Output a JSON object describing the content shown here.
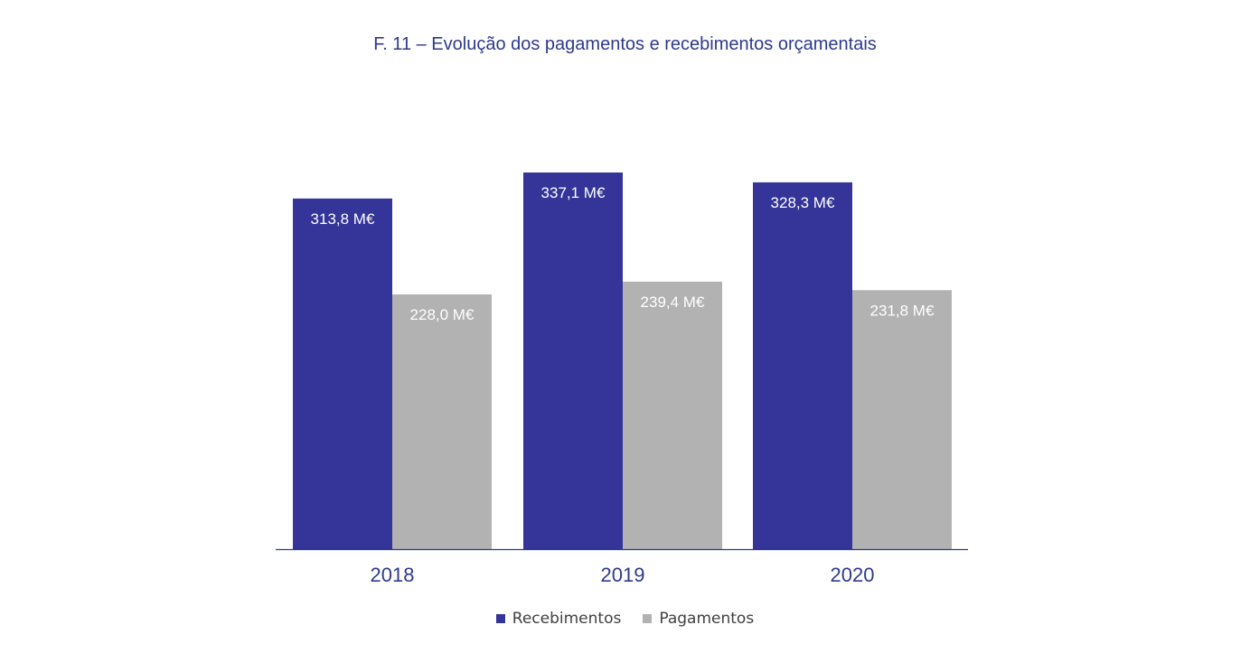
{
  "colors": {
    "title": "#2e3a8c",
    "recebimentos": "#343499",
    "pagamentos": "#b2b2b2",
    "axis": "#2e3a8c",
    "bar_label": "#ffffff"
  },
  "chart_data": {
    "type": "bar",
    "title": "F. 11 – Evolução dos pagamentos e recebimentos orçamentais",
    "categories": [
      "2018",
      "2019",
      "2020"
    ],
    "series": [
      {
        "name": "Recebimentos",
        "values": [
          313.8,
          337.1,
          328.3
        ],
        "labels": [
          "313,8 M€",
          "337,1 M€",
          "328,3 M€"
        ],
        "color": "#343499"
      },
      {
        "name": "Pagamentos",
        "values": [
          228.0,
          239.4,
          231.8
        ],
        "labels": [
          "228,0 M€",
          "239,4 M€",
          "231,8 M€"
        ],
        "color": "#b2b2b2"
      }
    ],
    "ylim": [
      0,
      337.1
    ],
    "grid": false,
    "legend_position": "bottom-center"
  }
}
